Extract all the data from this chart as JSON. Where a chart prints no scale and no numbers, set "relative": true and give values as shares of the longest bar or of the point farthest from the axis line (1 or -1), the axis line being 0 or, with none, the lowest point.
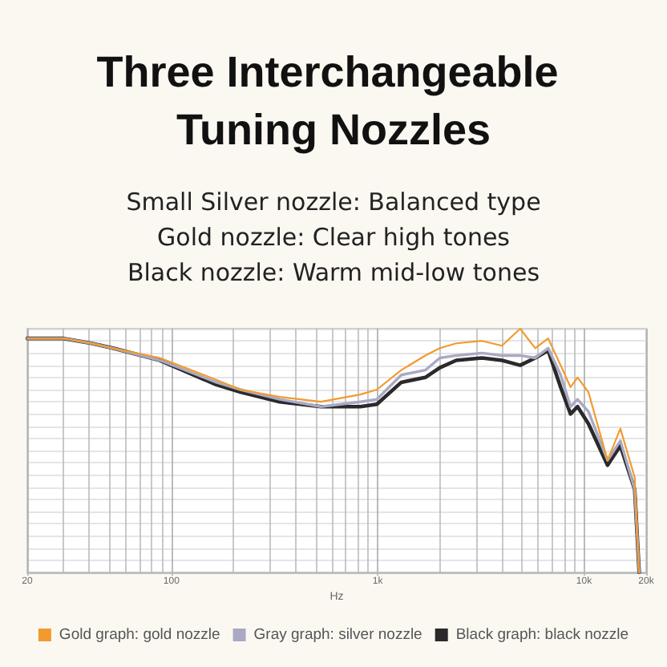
{
  "chart_data": {
    "type": "line",
    "title": "Three Interchangeable Tuning Nozzles",
    "subtitle": "Small Silver nozzle: Balanced type\nGold nozzle: Clear high tones\nBlack nozzle: Warm mid-low tones",
    "xlabel": "Hz",
    "relative": true,
    "log": "x",
    "xlim": [
      20,
      20000
    ],
    "xticks": [
      20,
      100,
      {
        "value": 1000,
        "label": "1k"
      },
      {
        "value": 10000,
        "label": "10k"
      },
      {
        "value": 20000,
        "label": "20k"
      }
    ],
    "grid": true,
    "legend": "bottom",
    "x": [
      20,
      30,
      41,
      52,
      88,
      165,
      216,
      335,
      530,
      823,
      990,
      1300,
      1700,
      2000,
      2400,
      3200,
      4000,
      4900,
      5800,
      6700,
      7700,
      8600,
      9300,
      10500,
      13000,
      15000,
      17600,
      18500
    ],
    "series": [
      {
        "name": "Gold graph: gold nozzle",
        "color": "#f39a2e",
        "values": [
          0.96,
          0.96,
          0.94,
          0.92,
          0.88,
          0.79,
          0.75,
          0.72,
          0.7,
          0.73,
          0.75,
          0.83,
          0.89,
          0.92,
          0.94,
          0.95,
          0.93,
          1,
          0.92,
          0.96,
          0.85,
          0.76,
          0.8,
          0.74,
          0.46,
          0.59,
          0.39,
          0
        ]
      },
      {
        "name": "Gray graph: silver nozzle",
        "color": "#a9a9c4",
        "values": [
          0.96,
          0.96,
          0.94,
          0.92,
          0.87,
          0.78,
          0.75,
          0.71,
          0.68,
          0.7,
          0.71,
          0.81,
          0.83,
          0.88,
          0.89,
          0.9,
          0.89,
          0.89,
          0.88,
          0.92,
          0.81,
          0.68,
          0.71,
          0.66,
          0.46,
          0.54,
          0.34,
          0
        ]
      },
      {
        "name": "Black graph: black nozzle",
        "color": "#2a2a2a",
        "values": [
          0.96,
          0.96,
          0.94,
          0.92,
          0.87,
          0.77,
          0.74,
          0.7,
          0.68,
          0.68,
          0.69,
          0.78,
          0.8,
          0.84,
          0.87,
          0.88,
          0.87,
          0.85,
          0.88,
          0.91,
          0.76,
          0.65,
          0.68,
          0.61,
          0.44,
          0.52,
          0.34,
          0
        ]
      }
    ]
  }
}
